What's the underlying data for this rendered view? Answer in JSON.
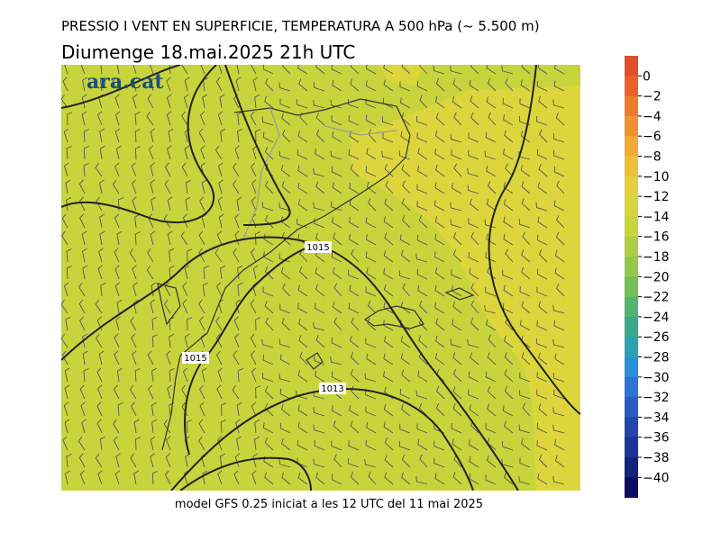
{
  "header": {
    "title": "PRESSIO I VENT EN SUPERFICIE, TEMPERATURA A 500 hPa (~ 5.500 m)",
    "subtitle": "Diumenge  18.mai.2025 21h UTC"
  },
  "map": {
    "logo": "ara.cat",
    "isobar_labels": [
      "1015",
      "1015",
      "1013"
    ]
  },
  "colorbar": {
    "labels": [
      "0",
      "−2",
      "−4",
      "−6",
      "−8",
      "−10",
      "−12",
      "−14",
      "−16",
      "−18",
      "−20",
      "−22",
      "−24",
      "−26",
      "−28",
      "−30",
      "−32",
      "−34",
      "−36",
      "−38",
      "−40"
    ],
    "colors": [
      "#e0502a",
      "#e8622a",
      "#ee7a2c",
      "#f09230",
      "#f2aa36",
      "#eec03a",
      "#e4d03c",
      "#d8d43c",
      "#c8d43c",
      "#b0ce42",
      "#94c84a",
      "#72c058",
      "#52b46e",
      "#3aa88c",
      "#2ea0b4",
      "#2a90d8",
      "#2a74d4",
      "#2a5cc4",
      "#2446ac",
      "#1c3494",
      "#14227c",
      "#0c0c64"
    ]
  },
  "footer": "model GFS 0.25 iniciat a les 12 UTC del 11 mai 2025"
}
